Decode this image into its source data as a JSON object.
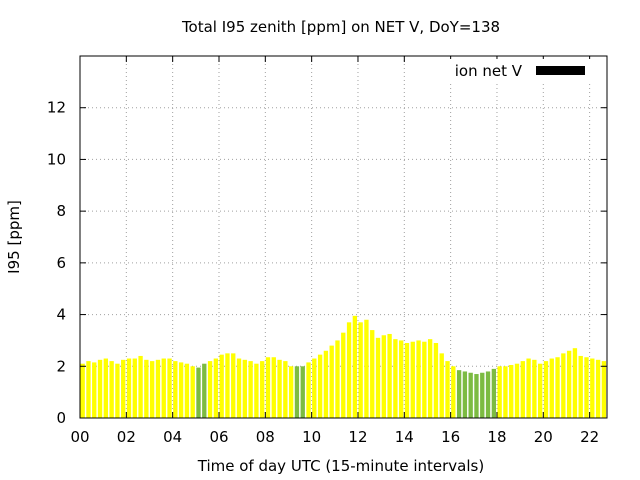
{
  "chart_data": {
    "type": "bar",
    "title": "Total I95 zenith [ppm] on NET V, DoY=138",
    "xlabel": "Time of day UTC (15-minute intervals)",
    "ylabel": "I95 [ppm]",
    "legend": {
      "label": "ion net V",
      "color": "#000000",
      "position": "top-right"
    },
    "xlim": [
      0,
      22.75
    ],
    "ylim": [
      0,
      14
    ],
    "xticks": [
      0,
      2,
      4,
      6,
      8,
      10,
      12,
      14,
      16,
      18,
      20,
      22
    ],
    "xtick_labels": [
      "00",
      "02",
      "04",
      "06",
      "08",
      "10",
      "12",
      "14",
      "16",
      "18",
      "20",
      "22"
    ],
    "yticks": [
      0,
      2,
      4,
      6,
      8,
      10,
      12
    ],
    "ytick_labels": [
      "0",
      "2",
      "4",
      "6",
      "8",
      "10",
      "12"
    ],
    "grid": true,
    "interval_hours": 0.25,
    "colors": {
      "normal": "#ffff00",
      "flagged": "#7cbb42"
    },
    "values": [
      2.1,
      2.2,
      2.15,
      2.25,
      2.3,
      2.2,
      2.1,
      2.25,
      2.3,
      2.3,
      2.4,
      2.25,
      2.2,
      2.25,
      2.3,
      2.3,
      2.2,
      2.15,
      2.1,
      2.0,
      1.95,
      2.1,
      2.2,
      2.3,
      2.45,
      2.5,
      2.5,
      2.3,
      2.25,
      2.2,
      2.1,
      2.2,
      2.35,
      2.35,
      2.25,
      2.2,
      2.0,
      2.0,
      2.0,
      2.15,
      2.3,
      2.45,
      2.6,
      2.8,
      3.0,
      3.3,
      3.7,
      3.95,
      3.7,
      3.8,
      3.4,
      3.1,
      3.2,
      3.25,
      3.05,
      3.0,
      2.9,
      2.95,
      3.0,
      2.95,
      3.05,
      2.9,
      2.5,
      2.2,
      2.0,
      1.85,
      1.8,
      1.75,
      1.7,
      1.75,
      1.8,
      1.9,
      2.0,
      2.0,
      2.05,
      2.1,
      2.2,
      2.3,
      2.25,
      2.1,
      2.2,
      2.3,
      2.35,
      2.5,
      2.6,
      2.7,
      2.4,
      2.35,
      2.3,
      2.25,
      2.2
    ],
    "flagged_indices": [
      20,
      21,
      37,
      38,
      65,
      66,
      67,
      68,
      69,
      70,
      71
    ]
  }
}
